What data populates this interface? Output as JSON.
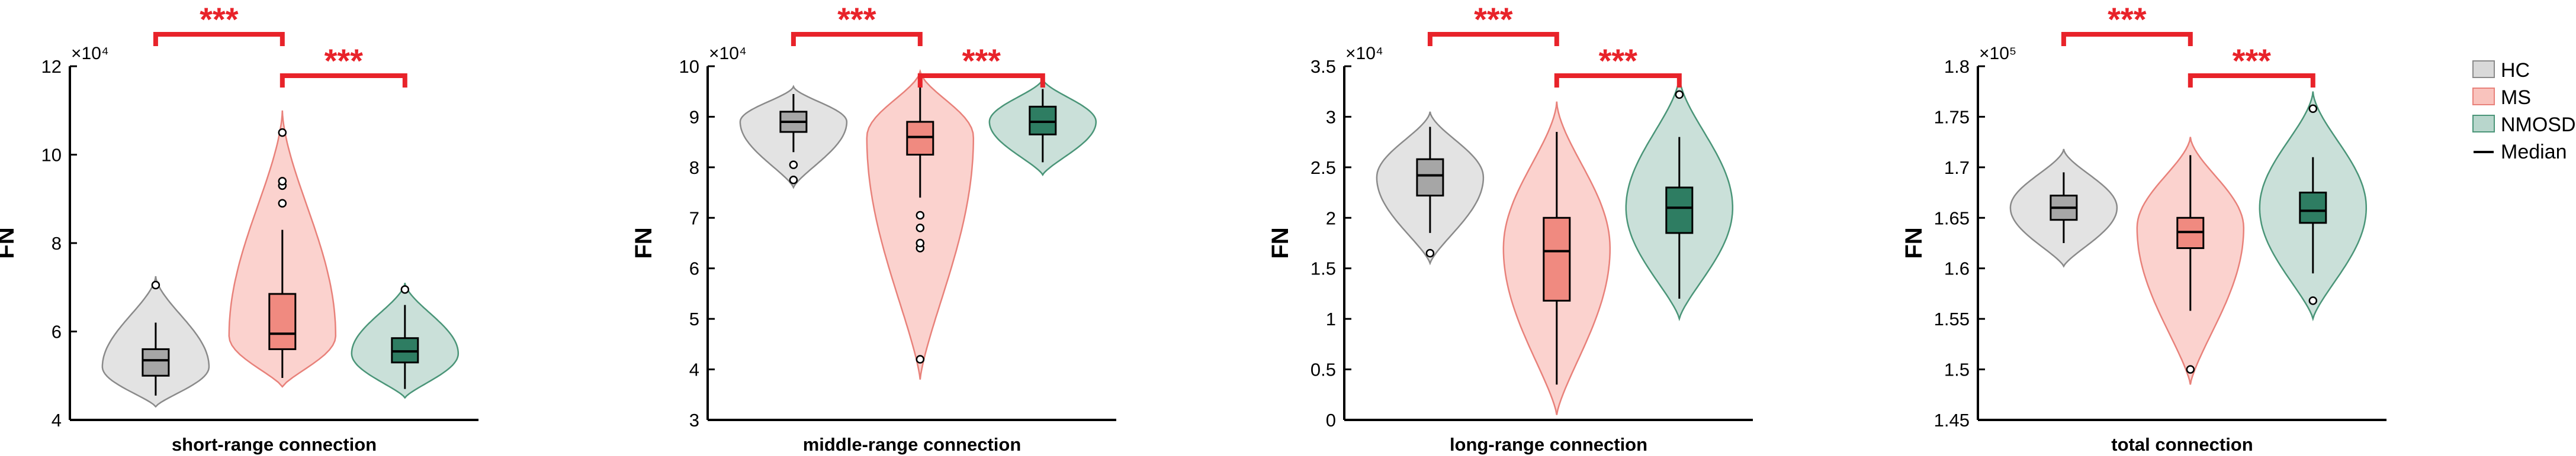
{
  "figure": {
    "legend": [
      {
        "label": "HC",
        "color": "#d9d9d9",
        "edge": "#8a8a8a"
      },
      {
        "label": "MS",
        "color": "#f9c3bd",
        "edge": "#e8817a"
      },
      {
        "label": "NMOSD",
        "color": "#b8d6cc",
        "edge": "#4a9578"
      },
      {
        "label": "Median",
        "color": "#000000"
      }
    ],
    "significance_color": "#e8232a"
  },
  "chart_data": [
    {
      "type": "violin",
      "xlabel": "short-range connection",
      "ylabel": "FN",
      "exponent_label": "×10⁴",
      "ylim": [
        4,
        12
      ],
      "yticks": [
        4,
        6,
        8,
        10,
        12
      ],
      "significance": [
        {
          "from": "HC",
          "to": "MS",
          "label": "***"
        },
        {
          "from": "MS",
          "to": "NMOSD",
          "label": "***"
        }
      ],
      "series": [
        {
          "name": "HC",
          "violin_min": 4.3,
          "violin_max": 7.25,
          "density_peak": 5.2,
          "q1": 5.0,
          "median": 5.35,
          "q3": 5.6,
          "whisker_low": 4.55,
          "whisker_high": 6.2,
          "outliers": [
            7.05
          ]
        },
        {
          "name": "MS",
          "violin_min": 4.75,
          "violin_max": 11.0,
          "density_peak": 5.9,
          "q1": 5.6,
          "median": 5.95,
          "q3": 6.85,
          "whisker_low": 4.95,
          "whisker_high": 8.3,
          "outliers": [
            8.9,
            9.3,
            9.4,
            10.5
          ]
        },
        {
          "name": "NMOSD",
          "violin_min": 4.5,
          "violin_max": 7.1,
          "density_peak": 5.5,
          "q1": 5.3,
          "median": 5.55,
          "q3": 5.85,
          "whisker_low": 4.7,
          "whisker_high": 6.6,
          "outliers": [
            6.95
          ]
        }
      ]
    },
    {
      "type": "violin",
      "xlabel": "middle-range connection",
      "ylabel": "FN",
      "exponent_label": "×10⁴",
      "ylim": [
        3,
        10
      ],
      "yticks": [
        3,
        4,
        5,
        6,
        7,
        8,
        9,
        10
      ],
      "significance": [
        {
          "from": "HC",
          "to": "MS",
          "label": "***"
        },
        {
          "from": "MS",
          "to": "NMOSD",
          "label": "***"
        }
      ],
      "series": [
        {
          "name": "HC",
          "violin_min": 7.6,
          "violin_max": 9.6,
          "density_peak": 8.9,
          "q1": 8.7,
          "median": 8.9,
          "q3": 9.1,
          "whisker_low": 8.3,
          "whisker_high": 9.45,
          "outliers": [
            7.75,
            8.05
          ]
        },
        {
          "name": "MS",
          "violin_min": 3.8,
          "violin_max": 9.9,
          "density_peak": 8.6,
          "q1": 8.25,
          "median": 8.6,
          "q3": 8.9,
          "whisker_low": 7.4,
          "whisker_high": 9.6,
          "outliers": [
            4.2,
            6.4,
            6.5,
            6.8,
            7.05
          ]
        },
        {
          "name": "NMOSD",
          "violin_min": 7.85,
          "violin_max": 9.75,
          "density_peak": 8.9,
          "q1": 8.65,
          "median": 8.9,
          "q3": 9.2,
          "whisker_low": 8.1,
          "whisker_high": 9.55,
          "outliers": []
        }
      ]
    },
    {
      "type": "violin",
      "xlabel": "long-range connection",
      "ylabel": "FN",
      "exponent_label": "×10⁴",
      "ylim": [
        0,
        3.5
      ],
      "yticks": [
        0,
        0.5,
        1,
        1.5,
        2,
        2.5,
        3,
        3.5
      ],
      "significance": [
        {
          "from": "HC",
          "to": "MS",
          "label": "***"
        },
        {
          "from": "MS",
          "to": "NMOSD",
          "label": "***"
        }
      ],
      "series": [
        {
          "name": "HC",
          "violin_min": 1.55,
          "violin_max": 3.05,
          "density_peak": 2.4,
          "q1": 2.22,
          "median": 2.42,
          "q3": 2.58,
          "whisker_low": 1.85,
          "whisker_high": 2.9,
          "outliers": [
            1.65
          ]
        },
        {
          "name": "MS",
          "violin_min": 0.05,
          "violin_max": 3.15,
          "density_peak": 1.7,
          "q1": 1.18,
          "median": 1.67,
          "q3": 2.0,
          "whisker_low": 0.35,
          "whisker_high": 2.85,
          "outliers": []
        },
        {
          "name": "NMOSD",
          "violin_min": 1.0,
          "violin_max": 3.4,
          "density_peak": 2.1,
          "q1": 1.85,
          "median": 2.1,
          "q3": 2.3,
          "whisker_low": 1.2,
          "whisker_high": 2.8,
          "outliers": [
            3.22
          ]
        }
      ]
    },
    {
      "type": "violin",
      "xlabel": "total connection",
      "ylabel": "FN",
      "exponent_label": "×10⁵",
      "ylim": [
        1.45,
        1.8
      ],
      "yticks": [
        1.45,
        1.5,
        1.55,
        1.6,
        1.65,
        1.7,
        1.75,
        1.8
      ],
      "significance": [
        {
          "from": "HC",
          "to": "MS",
          "label": "***"
        },
        {
          "from": "MS",
          "to": "NMOSD",
          "label": "***"
        }
      ],
      "series": [
        {
          "name": "HC",
          "violin_min": 1.602,
          "violin_max": 1.718,
          "density_peak": 1.66,
          "q1": 1.648,
          "median": 1.66,
          "q3": 1.672,
          "whisker_low": 1.625,
          "whisker_high": 1.695,
          "outliers": []
        },
        {
          "name": "MS",
          "violin_min": 1.485,
          "violin_max": 1.73,
          "density_peak": 1.64,
          "q1": 1.62,
          "median": 1.636,
          "q3": 1.65,
          "whisker_low": 1.558,
          "whisker_high": 1.712,
          "outliers": [
            1.5
          ]
        },
        {
          "name": "NMOSD",
          "violin_min": 1.55,
          "violin_max": 1.775,
          "density_peak": 1.66,
          "q1": 1.645,
          "median": 1.657,
          "q3": 1.675,
          "whisker_low": 1.595,
          "whisker_high": 1.71,
          "outliers": [
            1.568,
            1.758
          ]
        }
      ]
    }
  ]
}
